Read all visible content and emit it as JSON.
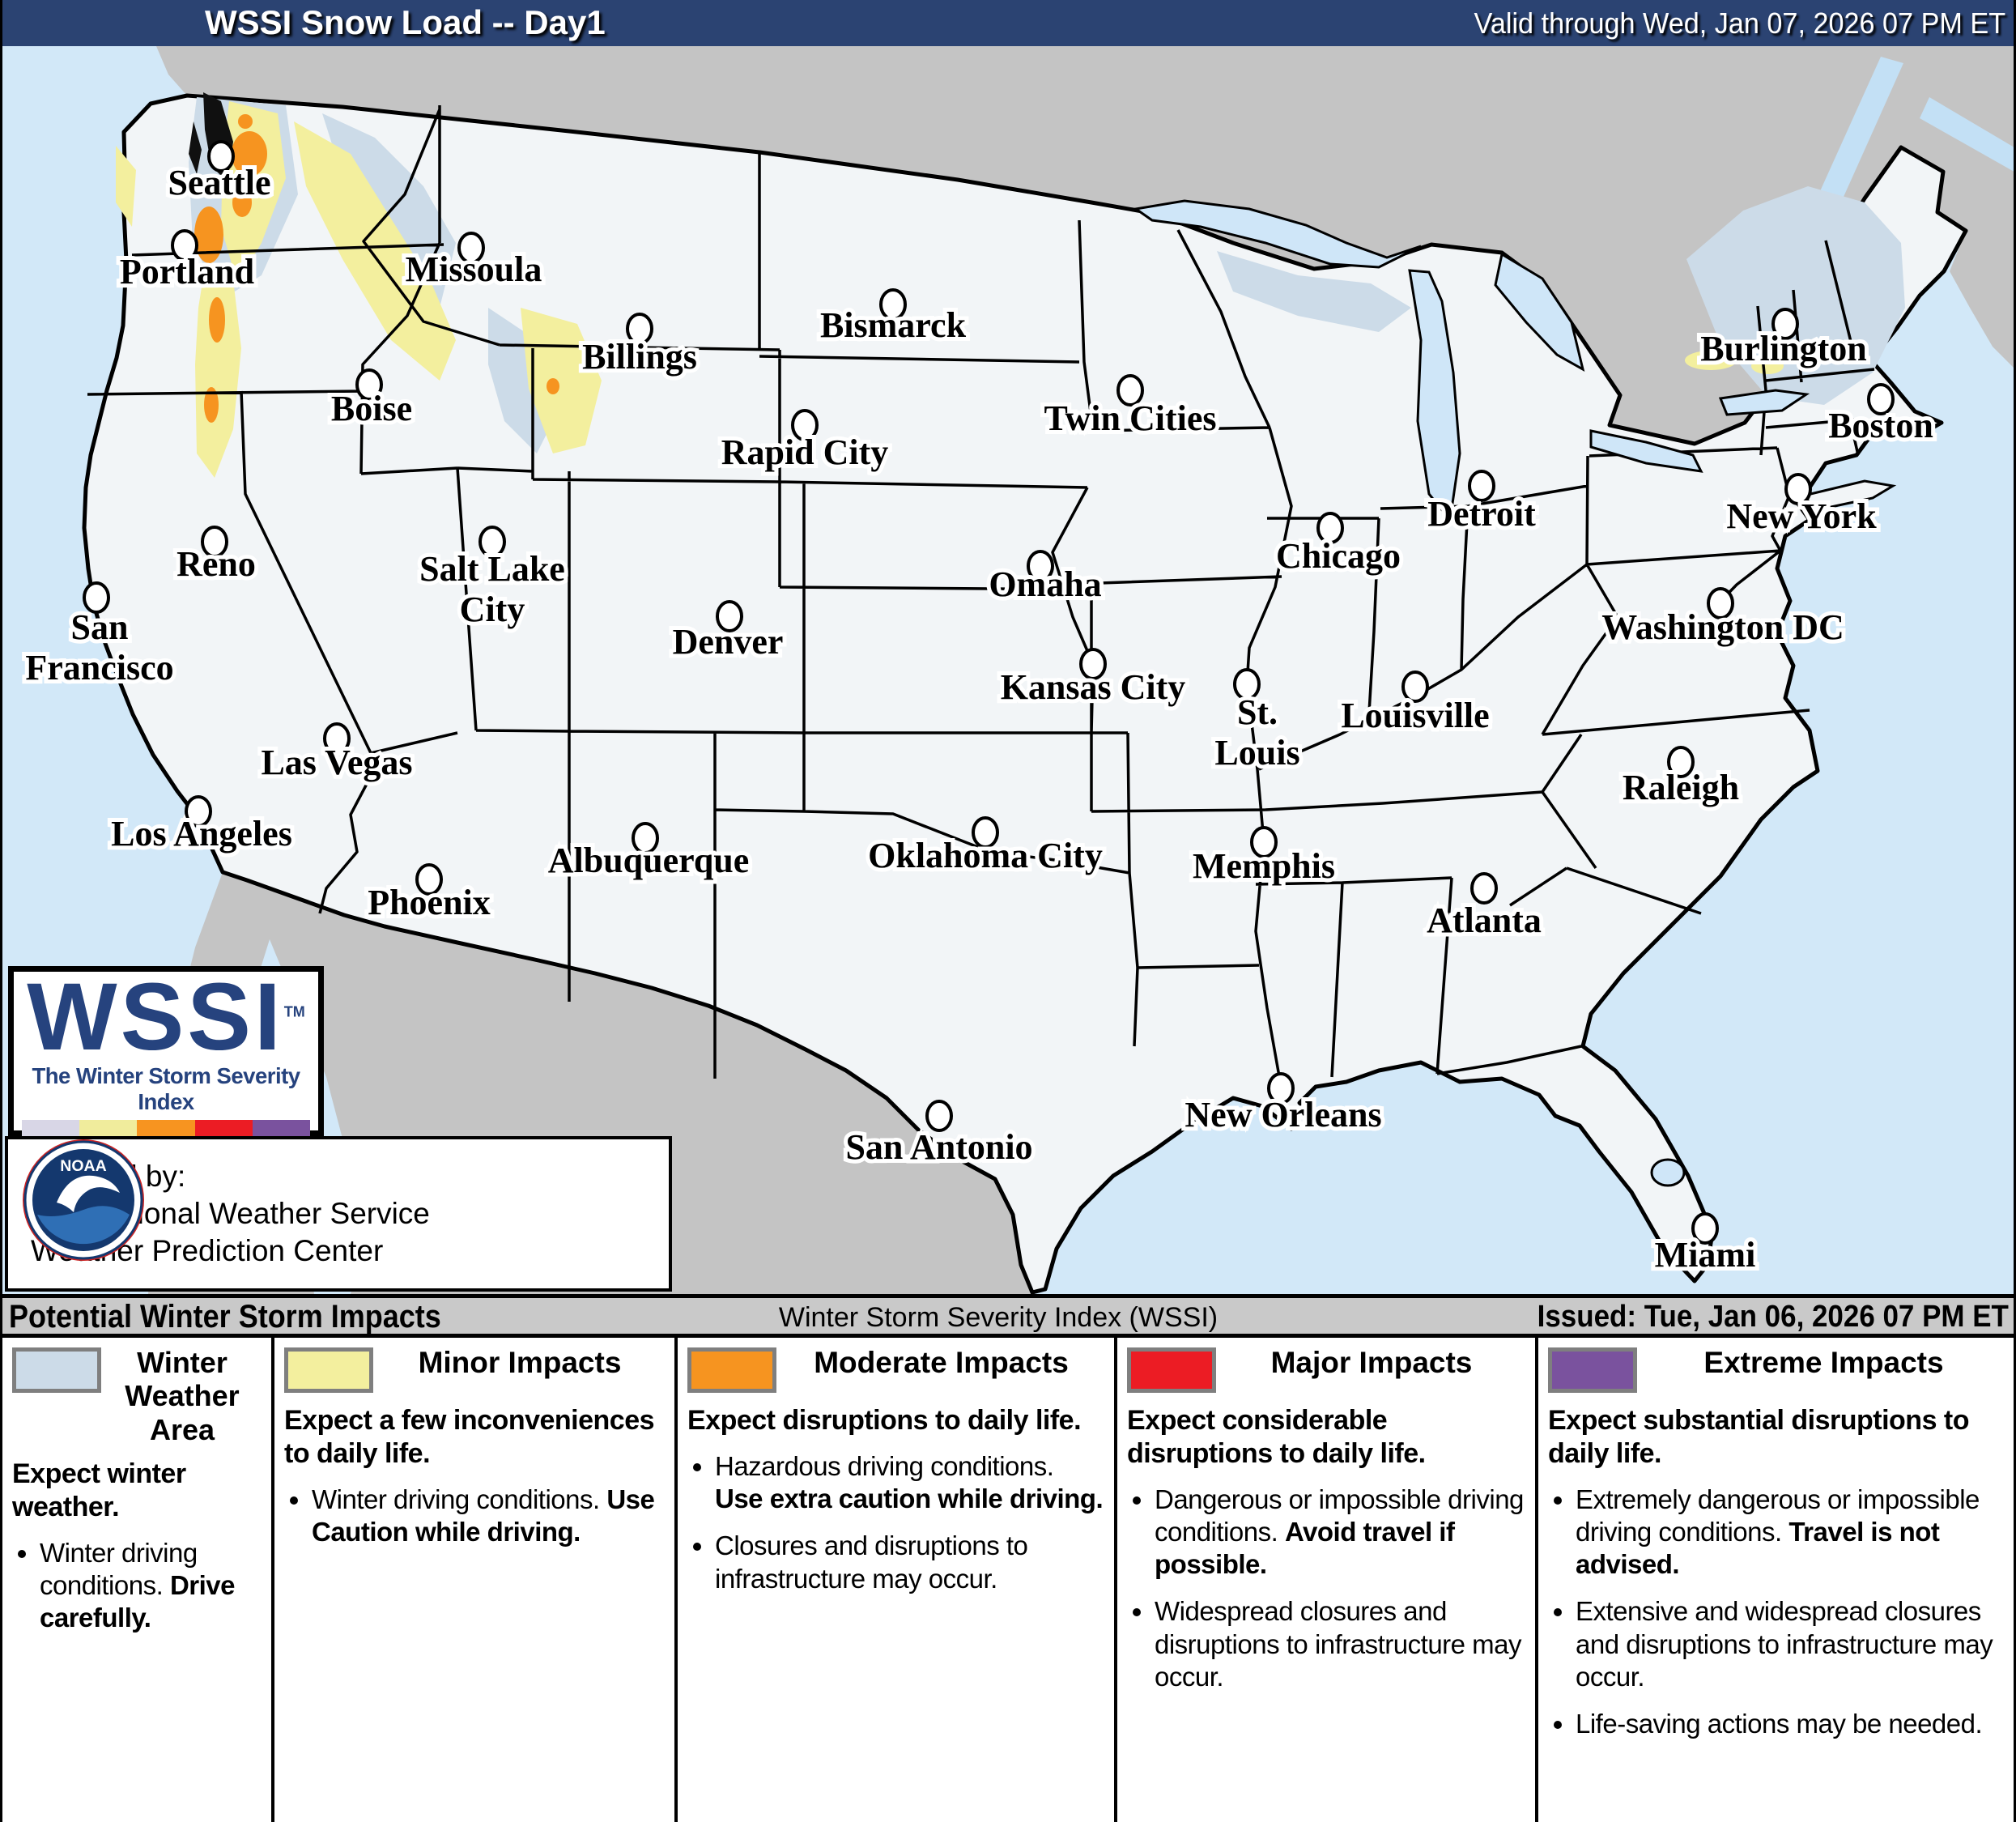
{
  "header": {
    "title": "WSSI Snow Load -- Day1",
    "valid": "Valid through Wed, Jan 07, 2026 07 PM ET"
  },
  "footer_bar": {
    "left": "Potential Winter Storm Impacts",
    "center": "Winter Storm Severity Index (WSSI)",
    "right": "Issued: Tue, Jan 06, 2026 07 PM ET"
  },
  "wssi_logo": {
    "acronym": "WSSI",
    "tm": "TM",
    "tagline": "The Winter Storm Severity Index",
    "bar_colors": [
      "#d8d6e6",
      "#f0ec9c",
      "#f79420",
      "#ec1c24",
      "#7a529e"
    ]
  },
  "credit": {
    "line1": "Created by:",
    "line2": "The National Weather Service",
    "line3": "Weather Prediction Center",
    "noaa_label": "NOAA"
  },
  "colors": {
    "winter_weather": "#ccdbe8",
    "minor": "#f3ef9e",
    "moderate": "#f69420",
    "major": "#ec1c24",
    "extreme": "#7a529e",
    "ocean": "#d2e8f8",
    "neighbor_land": "#c4c4c4",
    "us_land": "#f2f5f7"
  },
  "map": {
    "cities": [
      {
        "name": "Seattle",
        "dot": [
          270,
          193
        ],
        "label": [
          268,
          240
        ],
        "lines": [
          "Seattle"
        ]
      },
      {
        "name": "Portland",
        "dot": [
          225,
          303
        ],
        "label": [
          228,
          350
        ],
        "lines": [
          "Portland"
        ]
      },
      {
        "name": "Missoula",
        "dot": [
          579,
          306
        ],
        "label": [
          582,
          347
        ],
        "lines": [
          "Missoula"
        ]
      },
      {
        "name": "Boise",
        "dot": [
          453,
          475
        ],
        "label": [
          456,
          519
        ],
        "lines": [
          "Boise"
        ]
      },
      {
        "name": "Billings",
        "dot": [
          787,
          406
        ],
        "label": [
          787,
          455
        ],
        "lines": [
          "Billings"
        ]
      },
      {
        "name": "Bismarck",
        "dot": [
          1100,
          376
        ],
        "label": [
          1100,
          416
        ],
        "lines": [
          "Bismarck"
        ]
      },
      {
        "name": "Rapid City",
        "dot": [
          991,
          525
        ],
        "label": [
          991,
          573
        ],
        "lines": [
          "Rapid City"
        ]
      },
      {
        "name": "Twin Cities",
        "dot": [
          1393,
          482
        ],
        "label": [
          1393,
          531
        ],
        "lines": [
          "Twin Cities"
        ]
      },
      {
        "name": "Chicago",
        "dot": [
          1640,
          652
        ],
        "label": [
          1650,
          701
        ],
        "lines": [
          "Chicago"
        ]
      },
      {
        "name": "Detroit",
        "dot": [
          1827,
          600
        ],
        "label": [
          1827,
          649
        ],
        "lines": [
          "Detroit"
        ]
      },
      {
        "name": "Burlington",
        "dot": [
          2202,
          400
        ],
        "label": [
          2200,
          445
        ],
        "lines": [
          "Burlington"
        ]
      },
      {
        "name": "Boston",
        "dot": [
          2320,
          493
        ],
        "label": [
          2320,
          540
        ],
        "lines": [
          "Boston"
        ]
      },
      {
        "name": "New York",
        "dot": [
          2218,
          604
        ],
        "label": [
          2222,
          652
        ],
        "lines": [
          "New York"
        ]
      },
      {
        "name": "Washington DC",
        "dot": [
          2122,
          745
        ],
        "label": [
          2125,
          789
        ],
        "lines": [
          "Washington DC"
        ]
      },
      {
        "name": "Reno",
        "dot": [
          262,
          669
        ],
        "label": [
          264,
          711
        ],
        "lines": [
          "Reno"
        ]
      },
      {
        "name": "Salt Lake City",
        "dot": [
          605,
          669
        ],
        "label": [
          605,
          717
        ],
        "lines": [
          "Salt Lake",
          "City"
        ]
      },
      {
        "name": "San Francisco",
        "dot": [
          116,
          738
        ],
        "label": [
          120,
          789
        ],
        "lines": [
          "San",
          "Francisco"
        ]
      },
      {
        "name": "Denver",
        "dot": [
          898,
          761
        ],
        "label": [
          896,
          807
        ],
        "lines": [
          "Denver"
        ]
      },
      {
        "name": "Omaha",
        "dot": [
          1282,
          699
        ],
        "label": [
          1288,
          736
        ],
        "lines": [
          "Omaha"
        ]
      },
      {
        "name": "Kansas City",
        "dot": [
          1347,
          820
        ],
        "label": [
          1347,
          863
        ],
        "lines": [
          "Kansas City"
        ]
      },
      {
        "name": "St. Louis",
        "dot": [
          1537,
          845
        ],
        "label": [
          1550,
          894
        ],
        "lines": [
          "St.",
          "Louis"
        ]
      },
      {
        "name": "Louisville",
        "dot": [
          1745,
          848
        ],
        "label": [
          1745,
          898
        ],
        "lines": [
          "Louisville"
        ]
      },
      {
        "name": "Las Vegas",
        "dot": [
          413,
          912
        ],
        "label": [
          413,
          956
        ],
        "lines": [
          "Las Vegas"
        ]
      },
      {
        "name": "Los Angeles",
        "dot": [
          242,
          1002
        ],
        "label": [
          246,
          1044
        ],
        "lines": [
          "Los Angeles"
        ]
      },
      {
        "name": "Raleigh",
        "dot": [
          2073,
          941
        ],
        "label": [
          2073,
          987
        ],
        "lines": [
          "Raleigh"
        ]
      },
      {
        "name": "Albuquerque",
        "dot": [
          794,
          1035
        ],
        "label": [
          798,
          1077
        ],
        "lines": [
          "Albuquerque"
        ]
      },
      {
        "name": "Oklahoma City",
        "dot": [
          1214,
          1028
        ],
        "label": [
          1214,
          1071
        ],
        "lines": [
          "Oklahoma City"
        ]
      },
      {
        "name": "Memphis",
        "dot": [
          1558,
          1040
        ],
        "label": [
          1558,
          1084
        ],
        "lines": [
          "Memphis"
        ]
      },
      {
        "name": "Phoenix",
        "dot": [
          527,
          1086
        ],
        "label": [
          527,
          1129
        ],
        "lines": [
          "Phoenix"
        ]
      },
      {
        "name": "Atlanta",
        "dot": [
          1830,
          1097
        ],
        "label": [
          1830,
          1151
        ],
        "lines": [
          "Atlanta"
        ]
      },
      {
        "name": "San Antonio",
        "dot": [
          1157,
          1378
        ],
        "label": [
          1157,
          1431
        ],
        "lines": [
          "San Antonio"
        ]
      },
      {
        "name": "New Orleans",
        "dot": [
          1579,
          1344
        ],
        "label": [
          1582,
          1391
        ],
        "lines": [
          "New Orleans"
        ]
      },
      {
        "name": "Miami",
        "dot": [
          2103,
          1517
        ],
        "label": [
          2103,
          1564
        ],
        "lines": [
          "Miami"
        ]
      }
    ]
  },
  "legend": {
    "columns": [
      {
        "title": "Winter Weather Area",
        "color": "#ccdbe8",
        "intro": "Expect winter weather.",
        "bullets": [
          [
            {
              "t": "Winter driving conditions. "
            },
            {
              "t": "Drive carefully.",
              "b": true
            }
          ]
        ]
      },
      {
        "title": "Minor Impacts",
        "color": "#f3ef9e",
        "intro": "Expect a few inconveniences to daily life.",
        "bullets": [
          [
            {
              "t": "Winter driving conditions. "
            },
            {
              "t": "Use Caution while driving.",
              "b": true
            }
          ]
        ]
      },
      {
        "title": "Moderate Impacts",
        "color": "#f69420",
        "intro": "Expect disruptions to daily life.",
        "bullets": [
          [
            {
              "t": "Hazardous driving conditions. "
            },
            {
              "t": "Use extra caution while driving.",
              "b": true
            }
          ],
          [
            {
              "t": "Closures and disruptions to infrastructure may occur."
            }
          ]
        ]
      },
      {
        "title": "Major Impacts",
        "color": "#ec1c24",
        "intro": "Expect considerable disruptions to daily life.",
        "bullets": [
          [
            {
              "t": "Dangerous or impossible driving conditions. "
            },
            {
              "t": "Avoid travel if possible.",
              "b": true
            }
          ],
          [
            {
              "t": "Widespread closures and disruptions to infrastructure may occur."
            }
          ]
        ]
      },
      {
        "title": "Extreme Impacts",
        "color": "#7a529e",
        "intro": "Expect substantial disruptions to daily life.",
        "bullets": [
          [
            {
              "t": "Extremely dangerous or impossible driving conditions. "
            },
            {
              "t": "Travel is not advised.",
              "b": true
            }
          ],
          [
            {
              "t": "Extensive and widespread closures and disruptions to infrastructure may occur."
            }
          ],
          [
            {
              "t": "Life-saving actions may be needed."
            }
          ]
        ]
      }
    ]
  }
}
